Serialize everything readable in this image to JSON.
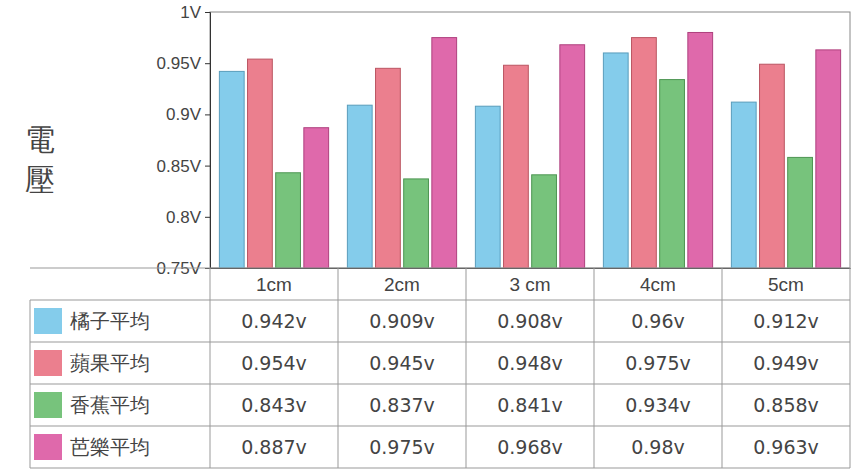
{
  "chart_data": {
    "type": "bar",
    "y_label": "電壓",
    "categories": [
      "1cm",
      "2cm",
      "3 cm",
      "4cm",
      "5cm"
    ],
    "series": [
      {
        "name": "橘子平均",
        "color": "#6ec3e8",
        "values": [
          0.942,
          0.909,
          0.908,
          0.96,
          0.912
        ],
        "value_labels": [
          "0.942v",
          "0.909v",
          "0.908v",
          "0.96v",
          "0.912v"
        ]
      },
      {
        "name": "蘋果平均",
        "color": "#e8697a",
        "values": [
          0.954,
          0.945,
          0.948,
          0.975,
          0.949
        ],
        "value_labels": [
          "0.954v",
          "0.945v",
          "0.948v",
          "0.975v",
          "0.949v"
        ]
      },
      {
        "name": "香蕉平均",
        "color": "#5fb865",
        "values": [
          0.843,
          0.837,
          0.841,
          0.934,
          0.858
        ],
        "value_labels": [
          "0.843v",
          "0.837v",
          "0.841v",
          "0.934v",
          "0.858v"
        ]
      },
      {
        "name": "芭樂平均",
        "color": "#d94f9c",
        "values": [
          0.887,
          0.975,
          0.968,
          0.98,
          0.963
        ],
        "value_labels": [
          "0.887v",
          "0.975v",
          "0.968v",
          "0.98v",
          "0.963v"
        ]
      }
    ],
    "ylim": [
      0.75,
      1.0
    ],
    "yticks": [
      {
        "value": 0.75,
        "label": "0.75V"
      },
      {
        "value": 0.8,
        "label": "0.8V"
      },
      {
        "value": 0.85,
        "label": "0.85V"
      },
      {
        "value": 0.9,
        "label": "0.9V"
      },
      {
        "value": 0.95,
        "label": "0.95V"
      },
      {
        "value": 1.0,
        "label": "1V"
      }
    ],
    "grid": false,
    "legend": "bottom"
  }
}
